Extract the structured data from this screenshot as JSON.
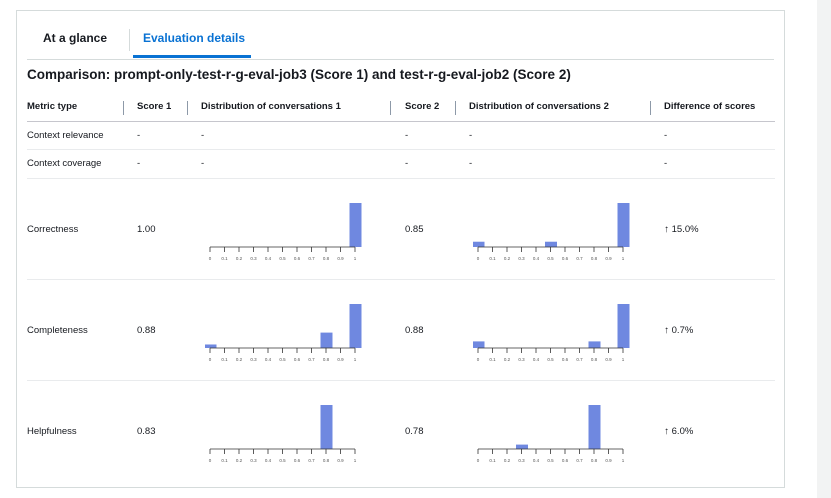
{
  "tabs": [
    {
      "label": "At a glance",
      "active": false
    },
    {
      "label": "Evaluation details",
      "active": true
    }
  ],
  "comparison_title": "Comparison: prompt-only-test-r-g-eval-job3 (Score 1) and test-r-g-eval-job2 (Score 2)",
  "table": {
    "headers": [
      "Metric type",
      "Score 1",
      "Distribution of conversations 1",
      "Score 2",
      "Distribution of conversations 2",
      "Difference of scores"
    ],
    "rows": [
      {
        "metric": "Context relevance",
        "score1": "-",
        "dist1": "-",
        "score2": "-",
        "dist2": "-",
        "diff": "-"
      },
      {
        "metric": "Context coverage",
        "score1": "-",
        "dist1": "-",
        "score2": "-",
        "dist2": "-",
        "diff": "-"
      },
      {
        "metric": "Correctness",
        "score1": "1.00",
        "score2": "0.85",
        "diff": "15.0%",
        "diff_arrow": "↑",
        "hist1": [
          0,
          0,
          0,
          0,
          0,
          0,
          0,
          0,
          0,
          0,
          1
        ],
        "hist2": [
          0.12,
          0,
          0,
          0,
          0,
          0.12,
          0,
          0,
          0,
          0,
          1
        ]
      },
      {
        "metric": "Completeness",
        "score1": "0.88",
        "score2": "0.88",
        "diff": "0.7%",
        "diff_arrow": "↑",
        "hist1": [
          0.08,
          0,
          0,
          0,
          0,
          0,
          0,
          0,
          0.35,
          0,
          1
        ],
        "hist2": [
          0.15,
          0,
          0,
          0,
          0,
          0,
          0,
          0,
          0.15,
          0,
          1
        ]
      },
      {
        "metric": "Helpfulness",
        "score1": "0.83",
        "score2": "0.78",
        "diff": "6.0%",
        "diff_arrow": "↑",
        "hist1": [
          0,
          0,
          0,
          0,
          0,
          0,
          0,
          0,
          1,
          0,
          0
        ],
        "hist2": [
          0,
          0,
          0,
          0.1,
          0,
          0,
          0,
          0,
          1,
          0,
          0
        ]
      }
    ]
  },
  "histogram_axis_ticks": [
    "0",
    "0.1",
    "0.2",
    "0.3",
    "0.4",
    "0.5",
    "0.6",
    "0.7",
    "0.8",
    "0.9",
    "1"
  ],
  "colors": {
    "bar": "#6f88e0",
    "accent": "#0972d3",
    "axis": "#333333"
  }
}
